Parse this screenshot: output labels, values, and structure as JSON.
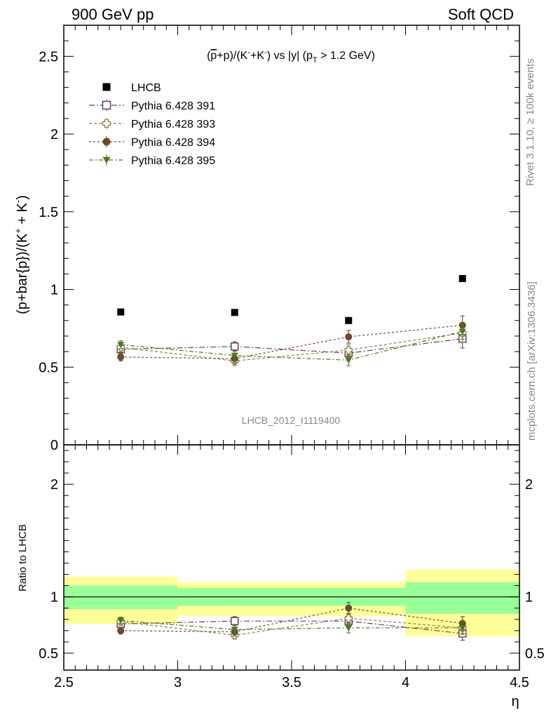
{
  "header": {
    "left": "900 GeV pp",
    "right": "Soft QCD"
  },
  "side_text": {
    "rivet": "Rivet 3.1.10, ≥ 100k events",
    "mcplots": "mcplots.cern.ch [arXiv:1306.3436]"
  },
  "watermark": "LHCB_2012_I1119400",
  "colors": {
    "lhcb": "#000000",
    "p391": "#6b3e5e",
    "p393": "#8b7d4a",
    "p394": "#6b4a2e",
    "p395": "#4a7a1e",
    "band_inner": "#99ff99",
    "band_outer": "#ffff99"
  },
  "chart_data": [
    {
      "type": "scatter",
      "title": "(p̅+p)/(K⁻+K⁻) vs |y| (p_T > 1.2 GeV)",
      "title_parts": {
        "a": "(",
        "pbar": "p",
        "b": "+p)/(K",
        "sup1": "-",
        "c": "+K",
        "sup2": "-",
        "d": ") vs |y| (p",
        "sub": "T",
        "e": " > 1.2 GeV)"
      },
      "ylabel": "(p+bar{p})/(K⁺ + K⁻)",
      "ylabel_parts": {
        "a": "(p+bar{p})/(K",
        "sup1": "+",
        "b": " + K",
        "sup2": "-",
        "c": ")"
      },
      "xlim": [
        2.5,
        4.5
      ],
      "ylim": [
        0,
        2.7
      ],
      "yticks": [
        "0",
        "0.5",
        "1",
        "1.5",
        "2",
        "2.5"
      ],
      "legend_position": "top-left",
      "x": [
        2.75,
        3.25,
        3.75,
        4.25
      ],
      "series": [
        {
          "name": "LHCB",
          "values": [
            0.855,
            0.852,
            0.8,
            1.07
          ],
          "errors": [
            0.01,
            0.01,
            0.01,
            0.015
          ],
          "marker": "square-filled"
        },
        {
          "name": "Pythia 6.428 391",
          "values": [
            0.615,
            0.633,
            0.59,
            0.683
          ],
          "errors": [
            0.03,
            0.03,
            0.035,
            0.06
          ],
          "marker": "square-open"
        },
        {
          "name": "Pythia 6.428 393",
          "values": [
            0.628,
            0.54,
            0.61,
            0.72
          ],
          "errors": [
            0.03,
            0.03,
            0.035,
            0.06
          ],
          "marker": "cross-open"
        },
        {
          "name": "Pythia 6.428 394",
          "values": [
            0.565,
            0.555,
            0.695,
            0.77
          ],
          "errors": [
            0.025,
            0.03,
            0.04,
            0.06
          ],
          "marker": "circle-filled"
        },
        {
          "name": "Pythia 6.428 395",
          "values": [
            0.645,
            0.575,
            0.545,
            0.73
          ],
          "errors": [
            0.025,
            0.03,
            0.035,
            0.05
          ],
          "marker": "triangle-down-filled"
        }
      ]
    },
    {
      "type": "scatter",
      "ylabel": "Ratio to LHCB",
      "xlabel": "η",
      "xlim": [
        2.5,
        4.5
      ],
      "ylim": [
        0.35,
        2.35
      ],
      "xticks": [
        "2.5",
        "3",
        "3.5",
        "4",
        "4.5"
      ],
      "yticks": [
        "0.5",
        "1",
        "2"
      ],
      "reference_line": 1,
      "bins": [
        [
          2.5,
          3.0
        ],
        [
          3.0,
          3.5
        ],
        [
          3.5,
          4.0
        ],
        [
          4.0,
          4.5
        ]
      ],
      "band_inner": [
        [
          0.89,
          1.1
        ],
        [
          0.92,
          1.08
        ],
        [
          0.92,
          1.08
        ],
        [
          0.85,
          1.13
        ]
      ],
      "band_outer": [
        [
          0.76,
          1.18
        ],
        [
          0.83,
          1.13
        ],
        [
          0.83,
          1.13
        ],
        [
          0.65,
          1.24
        ]
      ],
      "x": [
        2.75,
        3.25,
        3.75,
        4.25
      ],
      "series": [
        {
          "name": "Pythia 6.428 391",
          "values": [
            0.76,
            0.785,
            0.785,
            0.675
          ],
          "errors": [
            0.035,
            0.04,
            0.045,
            0.06
          ]
        },
        {
          "name": "Pythia 6.428 393",
          "values": [
            0.78,
            0.66,
            0.81,
            0.725
          ],
          "errors": [
            0.035,
            0.035,
            0.045,
            0.06
          ]
        },
        {
          "name": "Pythia 6.428 394",
          "values": [
            0.7,
            0.69,
            0.9,
            0.765
          ],
          "errors": [
            0.03,
            0.035,
            0.05,
            0.06
          ]
        },
        {
          "name": "Pythia 6.428 395",
          "values": [
            0.79,
            0.71,
            0.725,
            0.725
          ],
          "errors": [
            0.03,
            0.035,
            0.045,
            0.05
          ]
        }
      ]
    }
  ]
}
